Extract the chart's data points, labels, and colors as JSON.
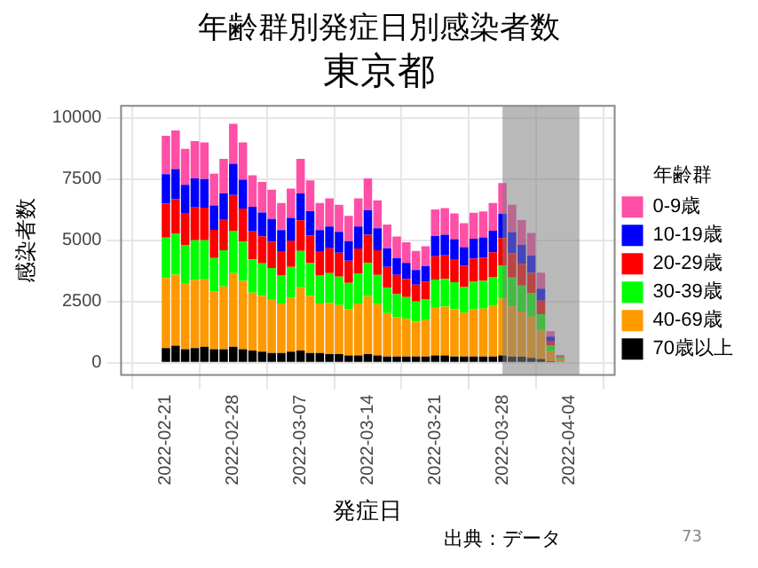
{
  "chart_data": {
    "type": "bar",
    "stacked": true,
    "title": "年齢群別発症日別感染者数",
    "subtitle": "東京都",
    "xlabel": "発症日",
    "ylabel": "感染者数",
    "legend_title": "年齢群",
    "legend": "right",
    "grid": true,
    "x": [
      "2022-02-21",
      "2022-02-22",
      "2022-02-23",
      "2022-02-24",
      "2022-02-25",
      "2022-02-26",
      "2022-02-27",
      "2022-02-28",
      "2022-03-01",
      "2022-03-02",
      "2022-03-03",
      "2022-03-04",
      "2022-03-05",
      "2022-03-06",
      "2022-03-07",
      "2022-03-08",
      "2022-03-09",
      "2022-03-10",
      "2022-03-11",
      "2022-03-12",
      "2022-03-13",
      "2022-03-14",
      "2022-03-15",
      "2022-03-16",
      "2022-03-17",
      "2022-03-18",
      "2022-03-19",
      "2022-03-20",
      "2022-03-21",
      "2022-03-22",
      "2022-03-23",
      "2022-03-24",
      "2022-03-25",
      "2022-03-26",
      "2022-03-27",
      "2022-03-28",
      "2022-03-29",
      "2022-03-30",
      "2022-03-31",
      "2022-04-01",
      "2022-04-02",
      "2022-04-03"
    ],
    "xlim": [
      "2022-02-20",
      "2022-04-05"
    ],
    "xticks": [
      "2022-02-21",
      "2022-02-28",
      "2022-03-07",
      "2022-03-14",
      "2022-03-21",
      "2022-03-28",
      "2022-04-04"
    ],
    "ylim": [
      -500,
      10500
    ],
    "yticks": [
      0,
      2500,
      5000,
      7500,
      10000
    ],
    "series": [
      {
        "name": "70歳以上",
        "color": "#000000",
        "values": [
          600,
          700,
          550,
          600,
          650,
          550,
          550,
          650,
          550,
          500,
          450,
          400,
          400,
          450,
          500,
          400,
          400,
          350,
          350,
          300,
          300,
          350,
          300,
          250,
          250,
          250,
          250,
          250,
          300,
          300,
          250,
          250,
          250,
          250,
          250,
          300,
          250,
          250,
          200,
          150,
          60,
          null
        ]
      },
      {
        "name": "40-69歳",
        "color": "#ff9900",
        "values": [
          2860,
          2900,
          2700,
          2790,
          2760,
          2370,
          2570,
          3010,
          2790,
          2360,
          2290,
          2200,
          2020,
          2200,
          2580,
          2330,
          2020,
          2100,
          2010,
          1880,
          2120,
          2370,
          2090,
          1780,
          1620,
          1540,
          1430,
          1490,
          1970,
          1990,
          1930,
          1800,
          1940,
          1960,
          2070,
          2320,
          2050,
          1840,
          1680,
          1160,
          410,
          140
        ]
      },
      {
        "name": "30-39歳",
        "color": "#00ff00",
        "values": [
          1650,
          1670,
          1560,
          1610,
          1590,
          1360,
          1480,
          1730,
          1610,
          1360,
          1320,
          1270,
          1160,
          1270,
          1490,
          1340,
          1160,
          1210,
          1160,
          1080,
          1220,
          1360,
          1200,
          1030,
          930,
          890,
          820,
          860,
          1130,
          1140,
          1110,
          1040,
          1120,
          1130,
          1190,
          1340,
          1180,
          1060,
          970,
          670,
          230,
          70
        ]
      },
      {
        "name": "20-29歳",
        "color": "#ff0000",
        "values": [
          1390,
          1410,
          1310,
          1350,
          1340,
          1150,
          1240,
          1460,
          1350,
          1150,
          1110,
          1070,
          980,
          1070,
          1250,
          1130,
          980,
          1020,
          980,
          910,
          1030,
          1150,
          1010,
          860,
          790,
          750,
          690,
          720,
          950,
          960,
          940,
          870,
          940,
          950,
          1000,
          1130,
          990,
          890,
          820,
          560,
          200,
          null
        ]
      },
      {
        "name": "10-19歳",
        "color": "#0000ff",
        "values": [
          1210,
          1230,
          1150,
          1180,
          1170,
          1000,
          1090,
          1280,
          1180,
          1000,
          970,
          930,
          860,
          930,
          1100,
          990,
          860,
          890,
          850,
          800,
          900,
          1010,
          890,
          760,
          690,
          650,
          600,
          630,
          830,
          840,
          820,
          760,
          820,
          830,
          880,
          990,
          870,
          780,
          710,
          490,
          170,
          null
        ]
      },
      {
        "name": "0-9歳",
        "color": "#ff4fa7",
        "values": [
          1560,
          1580,
          1470,
          1530,
          1490,
          1290,
          1400,
          1630,
          1520,
          1290,
          1250,
          1200,
          1110,
          1200,
          1410,
          1260,
          1110,
          1150,
          1100,
          1030,
          1150,
          1290,
          1150,
          970,
          880,
          840,
          780,
          810,
          1080,
          1090,
          1050,
          980,
          1060,
          1060,
          1140,
          1260,
          1110,
          1010,
          920,
          650,
          220,
          110
        ]
      }
    ],
    "bands": [
      {
        "axis": "x",
        "from": "2022-03-28",
        "to": "2022-04-05",
        "color": "#808080"
      }
    ],
    "annotations": [
      "出典：データ",
      "73"
    ]
  }
}
